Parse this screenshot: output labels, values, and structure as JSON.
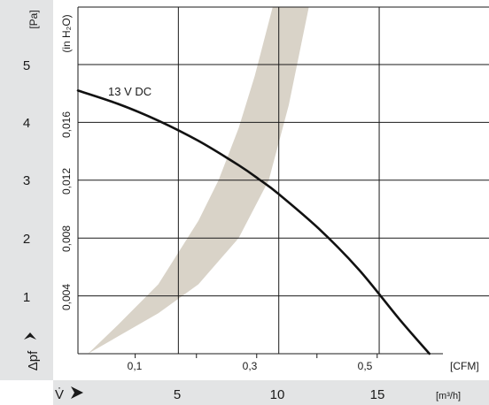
{
  "chart_data": {
    "type": "line",
    "title": "",
    "colors": {
      "panel": "#e3e4e5",
      "band": "#d9d3c8",
      "curve": "#111111",
      "grid": "#1a1a1a"
    },
    "y_axis_pa": {
      "unit_label": "[Pa]",
      "symbol_label": "Δpf",
      "range": [
        0,
        6
      ],
      "ticks": [
        "1",
        "2",
        "3",
        "4",
        "5"
      ]
    },
    "y_axis_inh2o": {
      "unit_label": "(in H₂O)",
      "ticks": [
        "0,004",
        "0,008",
        "0,012",
        "0,016"
      ]
    },
    "x_axis_cfm": {
      "unit_label": "[CFM]",
      "ticks": [
        "0,1",
        "0,3",
        "0,5"
      ]
    },
    "x_axis_m3h": {
      "unit_label": "[m³/h]",
      "symbol_label": "V̇",
      "range": [
        0,
        18
      ],
      "ticks": [
        "5",
        "10",
        "15"
      ]
    },
    "grid": true,
    "series": [
      {
        "name": "13 V DC",
        "x": [
          0,
          2,
          4,
          6,
          8,
          9,
          10,
          12,
          14,
          16,
          17.5
        ],
        "y": [
          4.55,
          4.32,
          4.03,
          3.68,
          3.26,
          3.02,
          2.76,
          2.16,
          1.45,
          0.6,
          0
        ]
      }
    ],
    "operating_band": {
      "lower_edge": {
        "x": [
          0.5,
          2,
          4,
          6,
          8,
          9.5,
          10.5,
          11.5
        ],
        "y": [
          0,
          0.3,
          0.7,
          1.2,
          2.0,
          3.0,
          4.3,
          6.0
        ]
      },
      "upper_edge": {
        "x": [
          0.5,
          2,
          4,
          6,
          7,
          8,
          8.8,
          9.7
        ],
        "y": [
          0,
          0.5,
          1.2,
          2.3,
          3.0,
          3.9,
          4.8,
          6.0
        ]
      }
    }
  }
}
